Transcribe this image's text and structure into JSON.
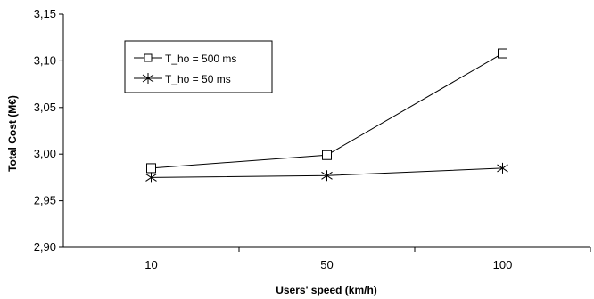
{
  "chart_data": {
    "type": "line",
    "title": "",
    "xlabel": "Users' speed (km/h)",
    "ylabel": "Total Cost (M€)",
    "categories": [
      "10",
      "50",
      "100"
    ],
    "ylim": [
      2.9,
      3.15
    ],
    "yticks": [
      "2,90",
      "2,95",
      "3,00",
      "3,05",
      "3,10",
      "3,15"
    ],
    "grid": false,
    "legend_position": "top-left",
    "series": [
      {
        "name": "T_ho = 500 ms",
        "marker": "square",
        "values": [
          2.985,
          2.999,
          3.108
        ]
      },
      {
        "name": "T_ho = 50 ms",
        "marker": "asterisk",
        "values": [
          2.975,
          2.977,
          2.985
        ]
      }
    ]
  }
}
